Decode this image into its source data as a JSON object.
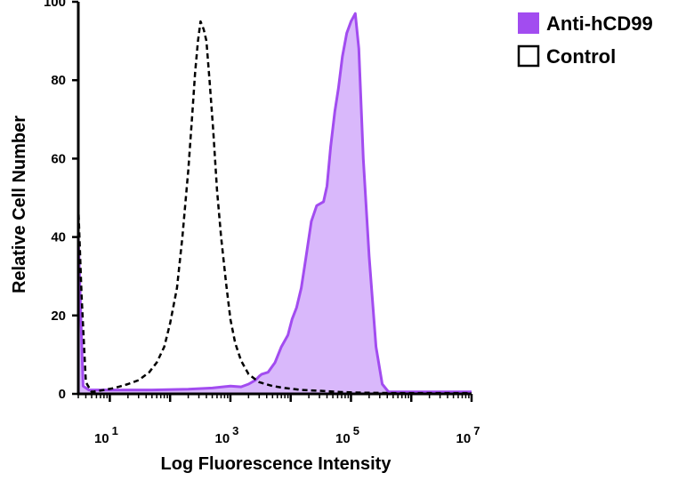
{
  "chart_data": {
    "type": "area",
    "title": "",
    "xlabel": "Log Fluorescence Intensity",
    "ylabel": "Relative Cell Number",
    "x_scale": "log",
    "xlim": [
      3,
      10000000
    ],
    "ylim": [
      0,
      100
    ],
    "x_ticks": [
      {
        "value": 10,
        "base": "10",
        "exp": "1"
      },
      {
        "value": 1000,
        "base": "10",
        "exp": "3"
      },
      {
        "value": 100000,
        "base": "10",
        "exp": "5"
      },
      {
        "value": 10000000,
        "base": "10",
        "exp": "7"
      }
    ],
    "y_ticks": [
      0,
      20,
      40,
      60,
      80,
      100
    ],
    "grid": false,
    "legend_position": "top-right",
    "series": [
      {
        "name": "Anti-hCD99",
        "style": "filled",
        "color": "#a24cf0",
        "fill": "#d9b8fb",
        "x": [
          3,
          3.6,
          4.5,
          10,
          50,
          200,
          500,
          1000,
          1500,
          2000,
          2600,
          3000,
          3300,
          4200,
          5500,
          7000,
          9000,
          10500,
          12500,
          15000,
          18000,
          22000,
          27000,
          35000,
          40000,
          46000,
          54000,
          62000,
          72000,
          85000,
          100000,
          118000,
          135000,
          160000,
          200000,
          260000,
          330000,
          420000,
          500000,
          700000,
          1000000,
          10000000
        ],
        "y": [
          40,
          2,
          1,
          1,
          1,
          1.2,
          1.5,
          2,
          1.8,
          2.5,
          3.5,
          4.5,
          5,
          5.5,
          8,
          12,
          15,
          19,
          22,
          27,
          35,
          44,
          48,
          49,
          53,
          63,
          72,
          78,
          86,
          92,
          95,
          97,
          88,
          60,
          35,
          12,
          2.5,
          0.5,
          0.5,
          0.5,
          0.5,
          0.5
        ]
      },
      {
        "name": "Control",
        "style": "dashed",
        "color": "#000000",
        "x": [
          3,
          3.4,
          4,
          5,
          8,
          12,
          20,
          30,
          45,
          60,
          80,
          100,
          130,
          160,
          200,
          230,
          260,
          290,
          320,
          360,
          400,
          450,
          520,
          600,
          700,
          850,
          1000,
          1200,
          1500,
          2000,
          3000,
          5000,
          8000,
          15000,
          30000,
          60000,
          150000,
          500000,
          10000000
        ],
        "y": [
          48,
          25,
          3,
          0.5,
          1,
          1.5,
          2.5,
          3.5,
          5.5,
          8,
          12,
          18,
          27,
          40,
          57,
          70,
          82,
          90,
          95,
          93,
          90,
          80,
          67,
          52,
          40,
          28,
          19,
          13,
          8.5,
          5,
          3,
          2,
          1.5,
          1,
          0.8,
          0.5,
          0.3,
          0.2,
          0.2
        ]
      }
    ]
  }
}
